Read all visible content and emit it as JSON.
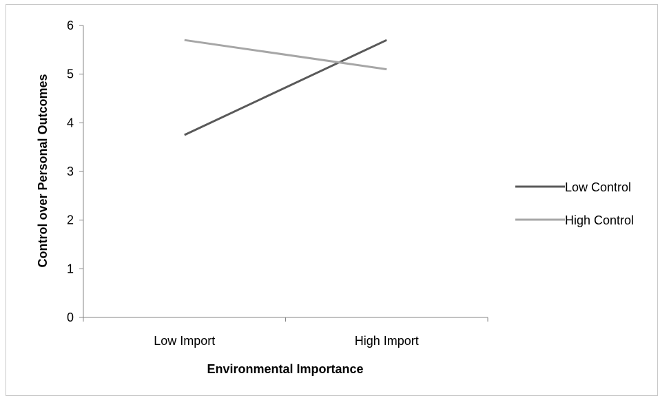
{
  "chart_data": {
    "type": "line",
    "categories": [
      "Low Import",
      "High Import"
    ],
    "series": [
      {
        "name": "Low Control",
        "values": [
          3.75,
          5.7
        ],
        "color": "#595959"
      },
      {
        "name": "High Control",
        "values": [
          5.7,
          5.1
        ],
        "color": "#a6a6a6"
      }
    ],
    "xlabel": "Environmental Importance",
    "ylabel": "Control over Personal Outcomes",
    "ylim": [
      0,
      6
    ],
    "yticks": [
      "0",
      "1",
      "2",
      "3",
      "4",
      "5",
      "6"
    ],
    "grid": false,
    "legend_position": "right"
  }
}
